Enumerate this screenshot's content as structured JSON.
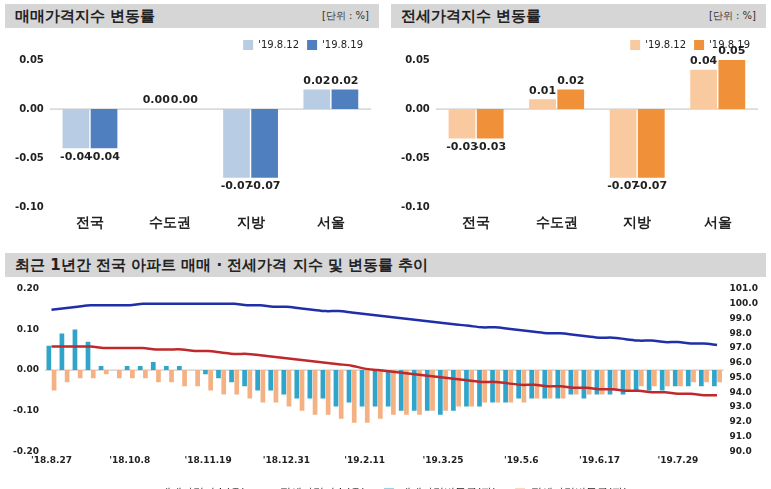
{
  "chart_data": [
    {
      "type": "bar",
      "title": "매매가격지수 변동률",
      "subtitle": "[단위 : %]",
      "categories": [
        "전국",
        "수도권",
        "지방",
        "서울"
      ],
      "series": [
        {
          "name": "'19.8.12",
          "color": "#b8cce4",
          "values": [
            -0.04,
            0.0,
            -0.07,
            0.02
          ],
          "value_labels": [
            "-0.04",
            "0.00",
            "-0.07",
            "0.02"
          ]
        },
        {
          "name": "'19.8.19",
          "color": "#4f7fbf",
          "values": [
            -0.04,
            0.0,
            -0.07,
            0.02
          ],
          "value_labels": [
            "-0.04",
            "0.00",
            "-0.07",
            "0.02"
          ]
        }
      ],
      "ylim": [
        -0.1,
        0.05
      ],
      "yticks": [
        {
          "value": -0.1,
          "label": "-0.10"
        },
        {
          "value": -0.05,
          "label": "-0.05"
        },
        {
          "value": 0,
          "label": "0.00"
        },
        {
          "value": 0.05,
          "label": "0.05"
        }
      ],
      "grid": false,
      "legend": "top",
      "data_labels": true
    },
    {
      "type": "bar",
      "title": "전세가격지수 변동률",
      "subtitle": "[단위 : %]",
      "categories": [
        "전국",
        "수도권",
        "지방",
        "서울"
      ],
      "series": [
        {
          "name": "'19.8.12",
          "color": "#f9c9a0",
          "values": [
            -0.03,
            0.01,
            -0.07,
            0.04
          ],
          "value_labels": [
            "-0.03",
            "0.01",
            "-0.07",
            "0.04"
          ]
        },
        {
          "name": "'19.8.19",
          "color": "#f0913a",
          "values": [
            -0.03,
            0.02,
            -0.07,
            0.05
          ],
          "value_labels": [
            "-0.03",
            "0.02",
            "-0.07",
            "0.05"
          ]
        }
      ],
      "ylim": [
        -0.1,
        0.05
      ],
      "yticks": [
        {
          "value": -0.1,
          "label": "-0.10"
        },
        {
          "value": -0.05,
          "label": "-0.05"
        },
        {
          "value": 0,
          "label": "0.00"
        },
        {
          "value": 0.05,
          "label": "0.05"
        }
      ],
      "grid": false,
      "legend": "top",
      "data_labels": true
    },
    {
      "type": "bar",
      "title": "최근 1년간 전국 아파트 매매 · 전세가격 지수 및 변동률 추이",
      "categories": [
        "'18.8.27",
        null,
        null,
        null,
        null,
        null,
        "'18.10.8",
        null,
        null,
        null,
        null,
        null,
        "'18.11.19",
        null,
        null,
        null,
        null,
        null,
        "'18.12.31",
        null,
        null,
        null,
        null,
        null,
        "'19.2.11",
        null,
        null,
        null,
        null,
        null,
        "'19.3.25",
        null,
        null,
        null,
        null,
        null,
        "'19.5.6",
        null,
        null,
        null,
        null,
        null,
        "'19.6.17",
        null,
        null,
        null,
        null,
        null,
        "'19.7.29",
        null,
        null,
        null
      ],
      "series": [
        {
          "name": "매매가격변동률(좌)",
          "type": "bar",
          "color": "#31a5c9",
          "values": [
            0.06,
            0.09,
            0.1,
            0.07,
            0.01,
            0.0,
            0.01,
            0.01,
            0.02,
            0.01,
            0.01,
            0.0,
            -0.01,
            -0.02,
            -0.03,
            -0.04,
            -0.05,
            -0.05,
            -0.06,
            -0.07,
            -0.07,
            -0.07,
            -0.09,
            -0.08,
            -0.09,
            -0.09,
            -0.09,
            -0.1,
            -0.1,
            -0.1,
            -0.11,
            -0.1,
            -0.09,
            -0.09,
            -0.08,
            -0.08,
            -0.07,
            -0.07,
            -0.07,
            -0.07,
            -0.06,
            -0.07,
            -0.06,
            -0.06,
            -0.06,
            -0.05,
            -0.05,
            -0.05,
            -0.04,
            -0.04,
            -0.04,
            -0.04
          ]
        },
        {
          "name": "전세가격변동률(좌)",
          "type": "bar",
          "color": "#f4b183",
          "values": [
            -0.05,
            -0.03,
            -0.02,
            -0.02,
            -0.01,
            -0.02,
            -0.02,
            -0.02,
            -0.03,
            -0.03,
            -0.04,
            -0.04,
            -0.05,
            -0.06,
            -0.06,
            -0.07,
            -0.08,
            -0.08,
            -0.09,
            -0.1,
            -0.11,
            -0.11,
            -0.12,
            -0.13,
            -0.13,
            -0.12,
            -0.11,
            -0.11,
            -0.11,
            -0.1,
            -0.1,
            -0.09,
            -0.09,
            -0.08,
            -0.08,
            -0.08,
            -0.08,
            -0.07,
            -0.07,
            -0.07,
            -0.06,
            -0.06,
            -0.06,
            -0.05,
            -0.05,
            -0.04,
            -0.04,
            -0.04,
            -0.04,
            -0.03,
            -0.03,
            -0.03
          ]
        },
        {
          "name": "매매가격지수(우)",
          "type": "line",
          "axis": "y2",
          "color": "#1f2fa8",
          "values": [
            99.6,
            99.7,
            99.8,
            99.9,
            99.9,
            99.9,
            99.9,
            100.0,
            100.0,
            100.0,
            100.0,
            100.0,
            100.0,
            100.0,
            100.0,
            99.9,
            99.9,
            99.8,
            99.8,
            99.7,
            99.6,
            99.5,
            99.5,
            99.4,
            99.3,
            99.2,
            99.1,
            99.0,
            98.9,
            98.8,
            98.7,
            98.6,
            98.5,
            98.4,
            98.4,
            98.3,
            98.2,
            98.1,
            98.0,
            98.0,
            97.9,
            97.8,
            97.7,
            97.7,
            97.6,
            97.5,
            97.5,
            97.4,
            97.4,
            97.3,
            97.3,
            97.2
          ]
        },
        {
          "name": "전세가격지수(우)",
          "type": "line",
          "axis": "y2",
          "color": "#c0282b",
          "values": [
            97.1,
            97.1,
            97.1,
            97.1,
            97.0,
            97.0,
            97.0,
            97.0,
            96.9,
            96.9,
            96.9,
            96.8,
            96.8,
            96.7,
            96.6,
            96.6,
            96.5,
            96.4,
            96.3,
            96.2,
            96.1,
            96.0,
            95.9,
            95.8,
            95.6,
            95.5,
            95.4,
            95.3,
            95.2,
            95.1,
            95.0,
            94.9,
            94.8,
            94.7,
            94.7,
            94.6,
            94.5,
            94.5,
            94.4,
            94.4,
            94.3,
            94.3,
            94.2,
            94.2,
            94.1,
            94.1,
            94.0,
            94.0,
            93.9,
            93.9,
            93.8,
            93.8
          ]
        }
      ],
      "ylim": [
        -0.2,
        0.2
      ],
      "yticks": [
        {
          "value": -0.2,
          "label": "-0.20"
        },
        {
          "value": -0.1,
          "label": "-0.10"
        },
        {
          "value": 0,
          "label": "0.00"
        },
        {
          "value": 0.1,
          "label": "0.10"
        },
        {
          "value": 0.2,
          "label": "0.20"
        }
      ],
      "y2lim": [
        90,
        101
      ],
      "y2ticks": [
        {
          "value": 90,
          "label": "90.0"
        },
        {
          "value": 91,
          "label": "91.0"
        },
        {
          "value": 92,
          "label": "92.0"
        },
        {
          "value": 93,
          "label": "93.0"
        },
        {
          "value": 94,
          "label": "94.0"
        },
        {
          "value": 95,
          "label": "95.0"
        },
        {
          "value": 96,
          "label": "96.0"
        },
        {
          "value": 97,
          "label": "97.0"
        },
        {
          "value": 98,
          "label": "98.0"
        },
        {
          "value": 99,
          "label": "99.0"
        },
        {
          "value": 100,
          "label": "100.0"
        },
        {
          "value": 101,
          "label": "101.0"
        }
      ],
      "grid": false,
      "legend": "bottom"
    }
  ]
}
